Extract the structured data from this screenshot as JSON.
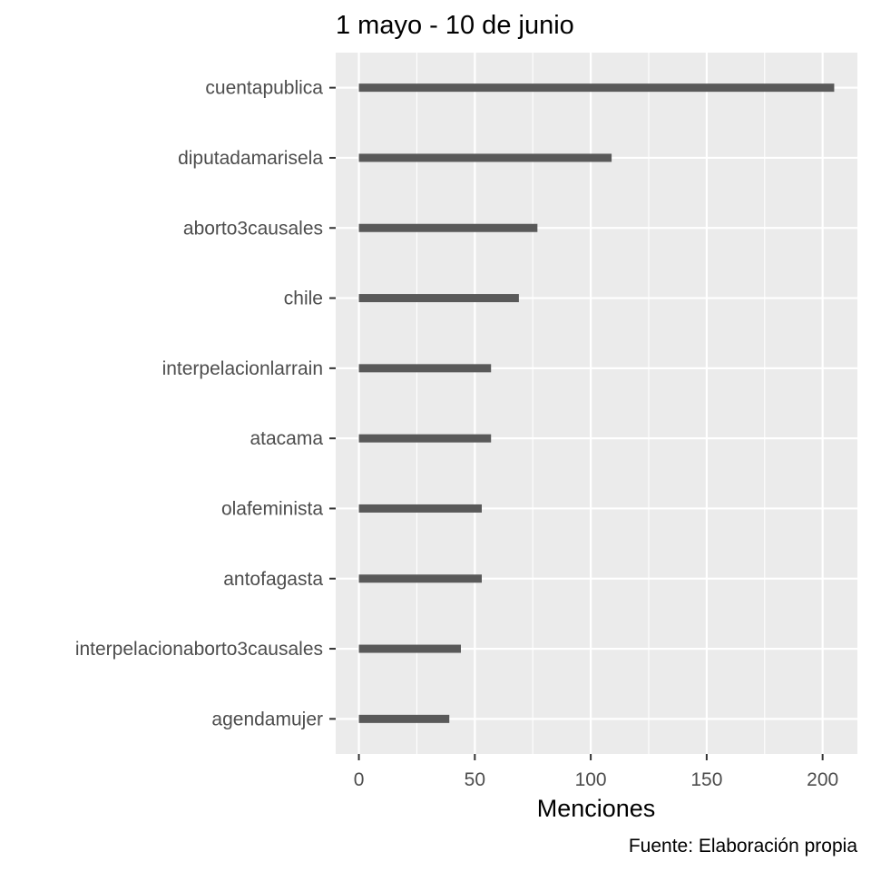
{
  "chart_data": {
    "type": "bar",
    "orientation": "horizontal",
    "title": "1 mayo - 10 de junio",
    "xlabel": "Menciones",
    "ylabel": "",
    "caption": "Fuente: Elaboración propia",
    "categories": [
      "cuentapublica",
      "diputadamarisela",
      "aborto3causales",
      "chile",
      "interpelacionlarrain",
      "atacama",
      "olafeminista",
      "antofagasta",
      "interpelacionaborto3causales",
      "agendamujer"
    ],
    "values": [
      205,
      109,
      77,
      69,
      57,
      57,
      53,
      53,
      44,
      39
    ],
    "xlim": [
      -10,
      215
    ],
    "xticks": [
      0,
      50,
      100,
      150,
      200
    ],
    "grid": true,
    "legend": "none",
    "colors": {
      "bar": "#595959",
      "panel": "#ebebeb",
      "grid": "#ffffff",
      "tick": "#333333"
    }
  }
}
